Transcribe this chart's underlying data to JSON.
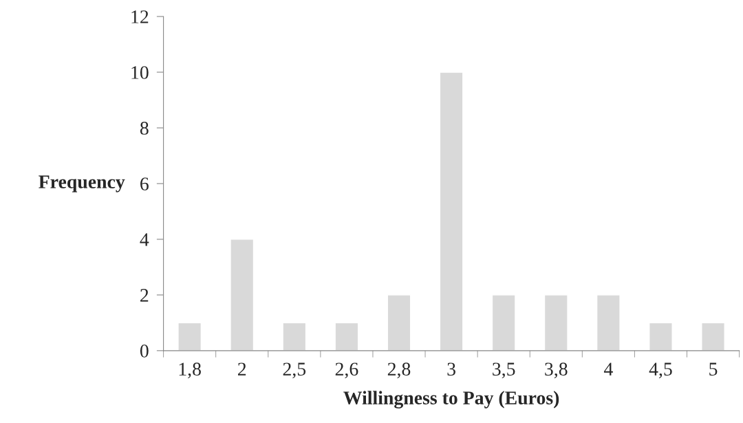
{
  "chart_data": {
    "type": "bar",
    "xlabel": "Willingness to Pay (Euros)",
    "ylabel": "Frequency",
    "categories": [
      "1,8",
      "2",
      "2,5",
      "2,6",
      "2,8",
      "3",
      "3,5",
      "3,8",
      "4",
      "4,5",
      "5"
    ],
    "values": [
      1,
      4,
      1,
      1,
      2,
      10,
      2,
      2,
      2,
      1,
      1
    ],
    "color": "#d9d9d9",
    "ylim": [
      0,
      12
    ],
    "yticks": [
      0,
      2,
      4,
      6,
      8,
      10,
      12
    ],
    "grid": false,
    "legend": false
  }
}
